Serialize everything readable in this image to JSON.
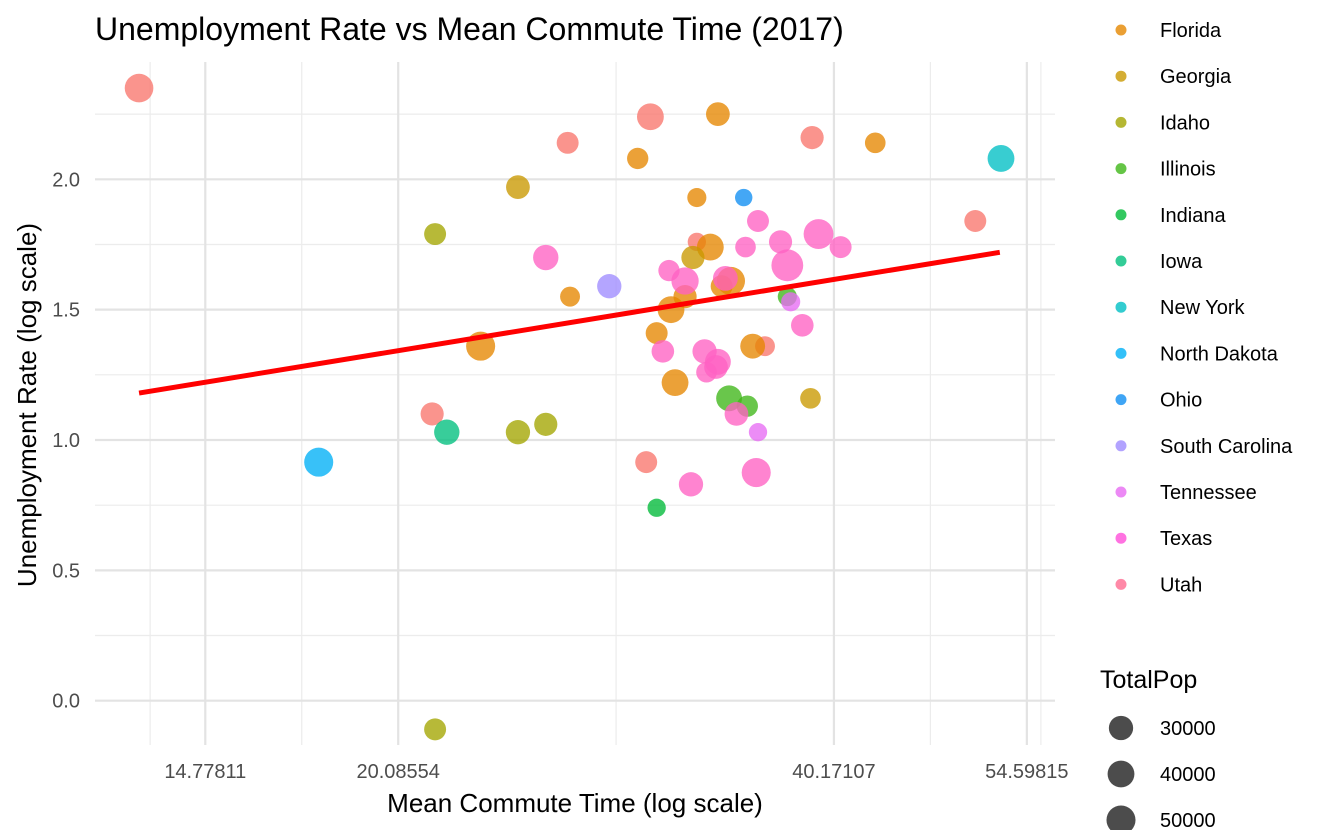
{
  "chart_data": {
    "type": "scatter",
    "title": "Unemployment Rate vs Mean Commute Time (2017)",
    "xlabel": "Mean Commute Time (log scale)",
    "ylabel": "Unemployment Rate (log scale)",
    "x_scale": "log",
    "y_scale": "log",
    "xlim": [
      12.4,
      57.1
    ],
    "ylim": [
      -0.17,
      2.45
    ],
    "x_ticks": [
      14.77811,
      20.08554,
      40.17107,
      54.59815
    ],
    "x_tick_labels": [
      "14.77811",
      "20.08554",
      "40.17107",
      "54.59815"
    ],
    "y_ticks": [
      0.0,
      0.5,
      1.0,
      1.5,
      2.0
    ],
    "y_tick_labels": [
      "0.0",
      "0.5",
      "1.0",
      "1.5",
      "2.0"
    ],
    "grid": true,
    "legend_position": "right",
    "color_legend": {
      "entries": [
        {
          "label": "Florida",
          "color": "#E58700"
        },
        {
          "label": "Georgia",
          "color": "#C99800"
        },
        {
          "label": "Idaho",
          "color": "#A3A500"
        },
        {
          "label": "Illinois",
          "color": "#3FB618"
        },
        {
          "label": "Indiana",
          "color": "#00BA38"
        },
        {
          "label": "Iowa",
          "color": "#00BF7D"
        },
        {
          "label": "New York",
          "color": "#00BFC4"
        },
        {
          "label": "North Dakota",
          "color": "#00B0F6"
        },
        {
          "label": "Ohio",
          "color": "#0F8EF2"
        },
        {
          "label": "South Carolina",
          "color": "#9F8CFF"
        },
        {
          "label": "Tennessee",
          "color": "#E76BF3"
        },
        {
          "label": "Texas",
          "color": "#FF4FD9"
        },
        {
          "label": "Utah",
          "color": "#FF6C91"
        }
      ]
    },
    "size_legend": {
      "title": "TotalPop",
      "entries": [
        {
          "label": "30000",
          "value": 30000
        },
        {
          "label": "40000",
          "value": 40000
        },
        {
          "label": "50000",
          "value": 50000
        }
      ]
    },
    "trend_line": {
      "color": "#FF0000",
      "points": [
        {
          "x": 13.3,
          "y": 1.18
        },
        {
          "x": 52.3,
          "y": 1.72
        }
      ]
    },
    "series": [
      {
        "group": "Utah",
        "color": "#F8766D",
        "points": [
          {
            "x": 13.3,
            "y": 2.35,
            "size": 48000
          },
          {
            "x": 30.0,
            "y": 2.24,
            "size": 40000
          },
          {
            "x": 26.3,
            "y": 2.14,
            "size": 22000
          },
          {
            "x": 38.8,
            "y": 2.16,
            "size": 26000
          },
          {
            "x": 50.3,
            "y": 1.84,
            "size": 22000
          },
          {
            "x": 21.2,
            "y": 1.1,
            "size": 26000
          },
          {
            "x": 29.8,
            "y": 0.915,
            "size": 22000
          },
          {
            "x": 32.3,
            "y": 1.76,
            "size": 12000
          },
          {
            "x": 36.0,
            "y": 1.36,
            "size": 16000
          }
        ]
      },
      {
        "group": "Florida",
        "color": "#E58700",
        "points": [
          {
            "x": 33.4,
            "y": 2.25,
            "size": 28000
          },
          {
            "x": 29.4,
            "y": 2.08,
            "size": 20000
          },
          {
            "x": 42.9,
            "y": 2.14,
            "size": 18000
          },
          {
            "x": 32.3,
            "y": 1.93,
            "size": 14000
          },
          {
            "x": 26.4,
            "y": 1.55,
            "size": 16000
          },
          {
            "x": 33.0,
            "y": 1.74,
            "size": 40000
          },
          {
            "x": 22.9,
            "y": 1.36,
            "size": 50000
          },
          {
            "x": 31.0,
            "y": 1.5,
            "size": 40000
          },
          {
            "x": 31.7,
            "y": 1.55,
            "size": 26000
          },
          {
            "x": 30.3,
            "y": 1.41,
            "size": 22000
          },
          {
            "x": 31.2,
            "y": 1.22,
            "size": 40000
          },
          {
            "x": 34.1,
            "y": 1.61,
            "size": 46000
          },
          {
            "x": 35.3,
            "y": 1.36,
            "size": 32000
          },
          {
            "x": 33.6,
            "y": 1.59,
            "size": 22000
          }
        ]
      },
      {
        "group": "Georgia",
        "color": "#C99800",
        "points": [
          {
            "x": 24.3,
            "y": 1.97,
            "size": 28000
          },
          {
            "x": 32.1,
            "y": 1.7,
            "size": 26000
          },
          {
            "x": 38.7,
            "y": 1.16,
            "size": 18000
          }
        ]
      },
      {
        "group": "Idaho",
        "color": "#A3A500",
        "points": [
          {
            "x": 21.3,
            "y": 1.79,
            "size": 22000
          },
          {
            "x": 24.3,
            "y": 1.03,
            "size": 30000
          },
          {
            "x": 25.4,
            "y": 1.06,
            "size": 26000
          },
          {
            "x": 21.3,
            "y": -0.11,
            "size": 22000
          }
        ]
      },
      {
        "group": "Illinois",
        "color": "#3FB618",
        "points": [
          {
            "x": 34.0,
            "y": 1.16,
            "size": 36000
          },
          {
            "x": 35.0,
            "y": 1.13,
            "size": 20000
          },
          {
            "x": 37.3,
            "y": 1.55,
            "size": 14000
          }
        ]
      },
      {
        "group": "Indiana",
        "color": "#00BA38",
        "points": [
          {
            "x": 30.3,
            "y": 0.74,
            "size": 12000
          }
        ]
      },
      {
        "group": "Iowa",
        "color": "#00BF7D",
        "points": [
          {
            "x": 21.7,
            "y": 1.03,
            "size": 34000
          }
        ]
      },
      {
        "group": "New York",
        "color": "#00BFC4",
        "points": [
          {
            "x": 52.4,
            "y": 2.08,
            "size": 40000
          }
        ]
      },
      {
        "group": "North Dakota",
        "color": "#00B0F6",
        "points": [
          {
            "x": 17.7,
            "y": 0.915,
            "size": 50000
          }
        ]
      },
      {
        "group": "Ohio",
        "color": "#0F8EF2",
        "points": [
          {
            "x": 34.8,
            "y": 1.93,
            "size": 10000
          }
        ]
      },
      {
        "group": "South Carolina",
        "color": "#9F8CFF",
        "points": [
          {
            "x": 28.1,
            "y": 1.59,
            "size": 30000
          }
        ]
      },
      {
        "group": "Tennessee",
        "color": "#E76BF3",
        "points": [
          {
            "x": 37.5,
            "y": 1.53,
            "size": 14000
          },
          {
            "x": 35.6,
            "y": 1.03,
            "size": 12000
          }
        ]
      },
      {
        "group": "Texas",
        "color": "#FF61C3",
        "points": [
          {
            "x": 25.4,
            "y": 1.7,
            "size": 34000
          },
          {
            "x": 30.9,
            "y": 1.65,
            "size": 20000
          },
          {
            "x": 31.7,
            "y": 1.61,
            "size": 42000
          },
          {
            "x": 33.8,
            "y": 1.62,
            "size": 32000
          },
          {
            "x": 35.6,
            "y": 1.84,
            "size": 22000
          },
          {
            "x": 34.9,
            "y": 1.74,
            "size": 18000
          },
          {
            "x": 36.9,
            "y": 1.76,
            "size": 26000
          },
          {
            "x": 37.3,
            "y": 1.67,
            "size": 64000
          },
          {
            "x": 39.2,
            "y": 1.79,
            "size": 54000
          },
          {
            "x": 40.6,
            "y": 1.74,
            "size": 22000
          },
          {
            "x": 30.6,
            "y": 1.34,
            "size": 24000
          },
          {
            "x": 32.7,
            "y": 1.34,
            "size": 30000
          },
          {
            "x": 33.4,
            "y": 1.3,
            "size": 36000
          },
          {
            "x": 33.3,
            "y": 1.28,
            "size": 28000
          },
          {
            "x": 32.8,
            "y": 1.26,
            "size": 18000
          },
          {
            "x": 34.4,
            "y": 1.1,
            "size": 28000
          },
          {
            "x": 32.0,
            "y": 0.83,
            "size": 30000
          },
          {
            "x": 35.5,
            "y": 0.875,
            "size": 50000
          },
          {
            "x": 38.2,
            "y": 1.44,
            "size": 24000
          }
        ]
      }
    ]
  }
}
